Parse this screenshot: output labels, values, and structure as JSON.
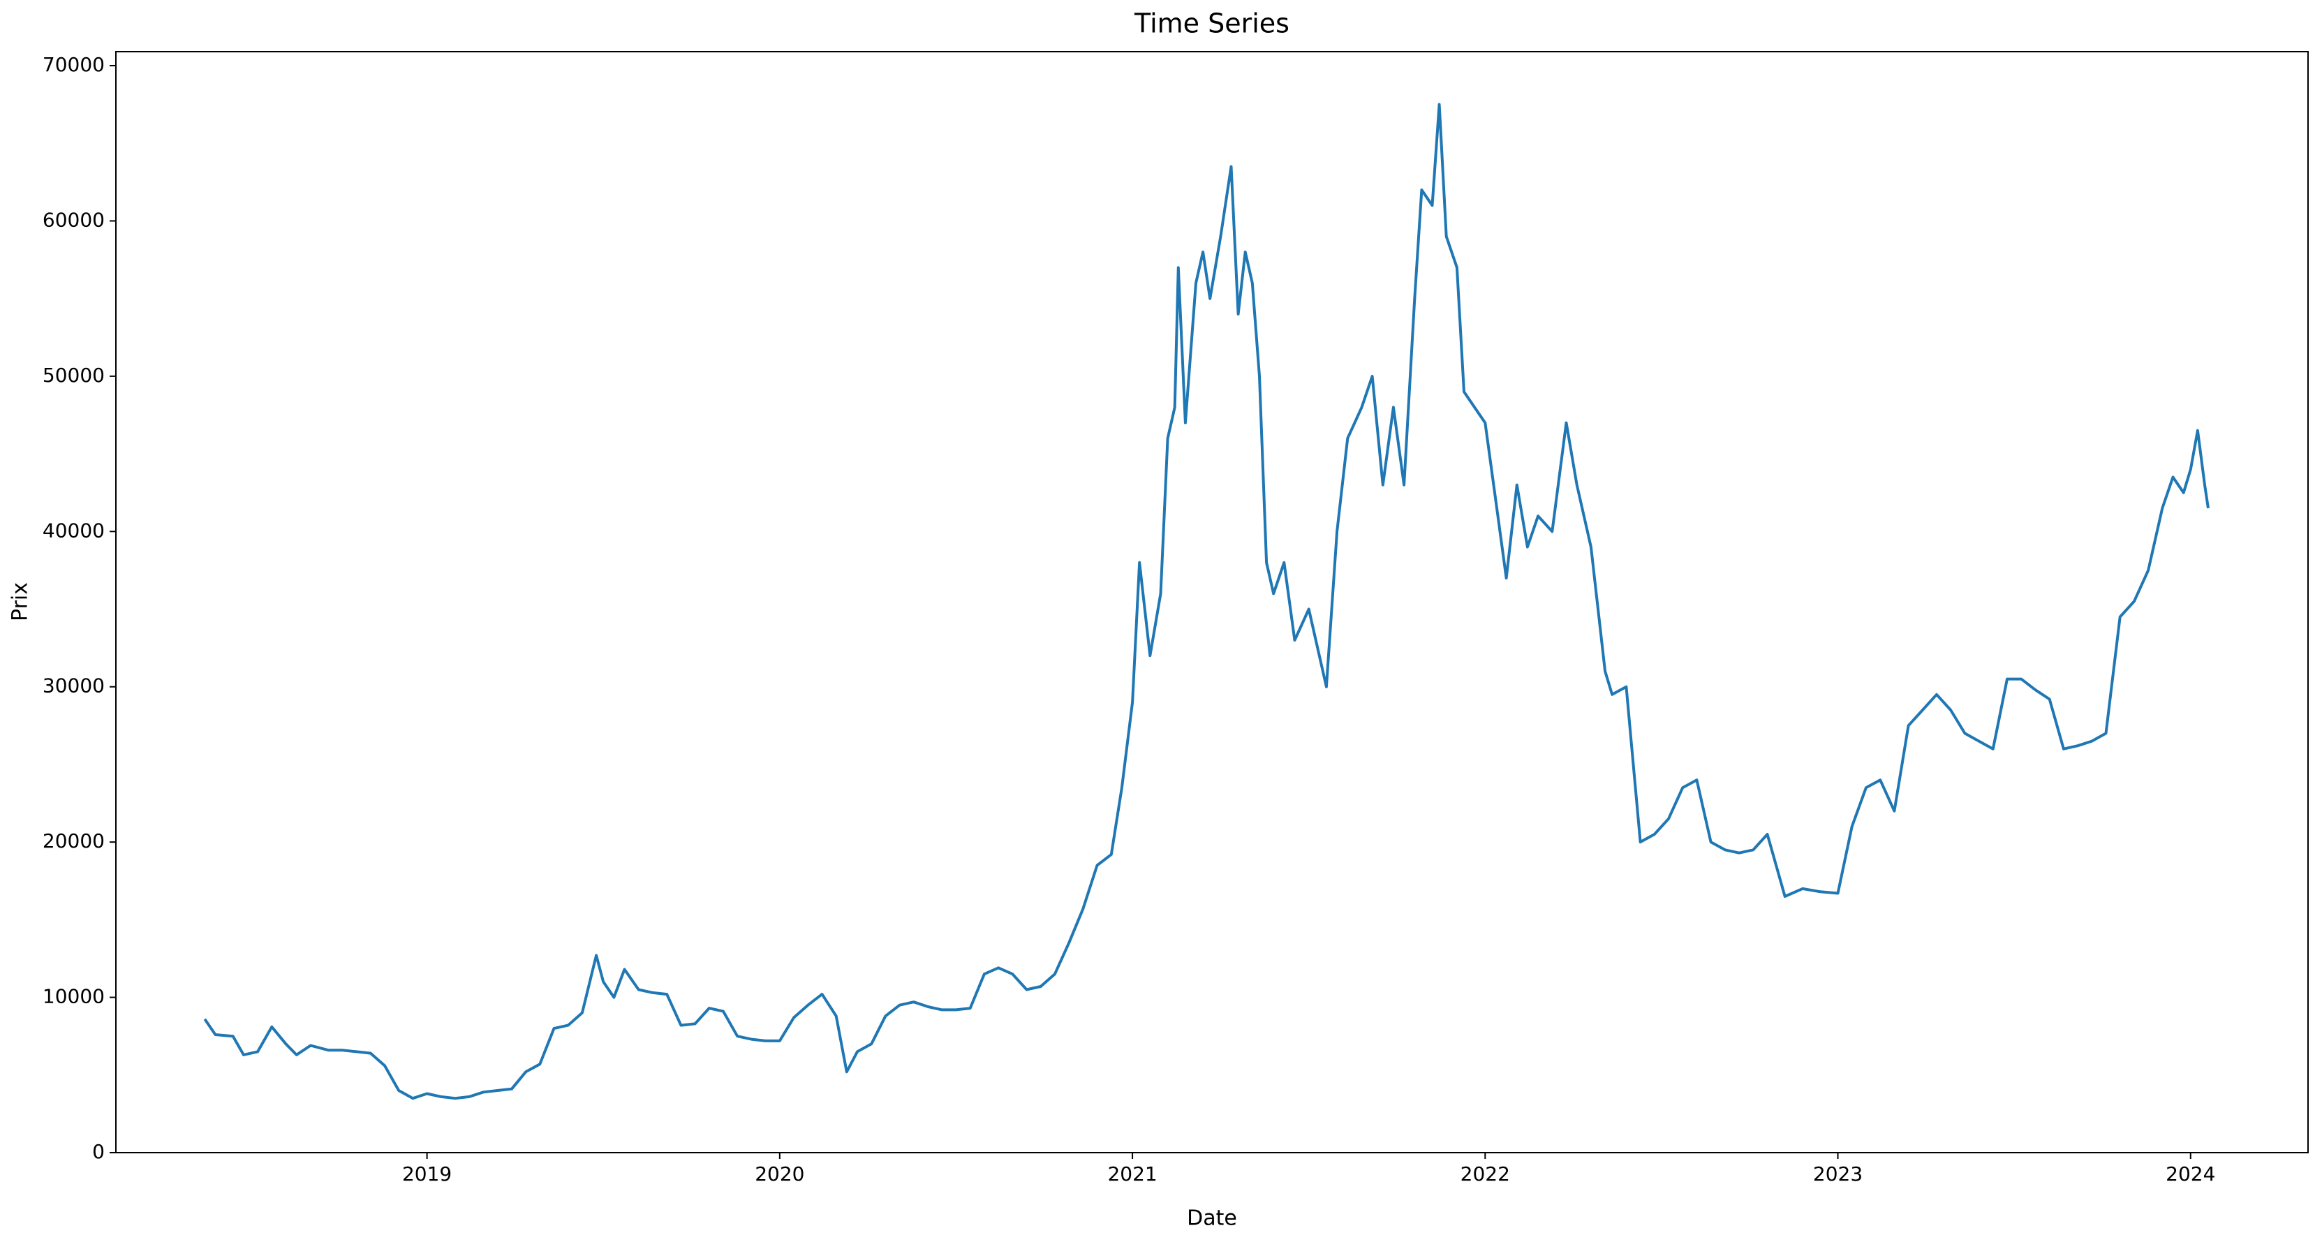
{
  "chart_data": {
    "type": "line",
    "title": "Time Series",
    "x_label": "Date",
    "y_label": "Prix",
    "x": [
      2018.37,
      2018.4,
      2018.45,
      2018.48,
      2018.52,
      2018.56,
      2018.6,
      2018.63,
      2018.67,
      2018.72,
      2018.76,
      2018.8,
      2018.84,
      2018.88,
      2018.92,
      2018.96,
      2019.0,
      2019.04,
      2019.08,
      2019.12,
      2019.16,
      2019.2,
      2019.24,
      2019.28,
      2019.32,
      2019.36,
      2019.4,
      2019.44,
      2019.48,
      2019.5,
      2019.53,
      2019.56,
      2019.6,
      2019.64,
      2019.68,
      2019.72,
      2019.76,
      2019.8,
      2019.84,
      2019.88,
      2019.92,
      2019.96,
      2020.0,
      2020.04,
      2020.08,
      2020.12,
      2020.16,
      2020.19,
      2020.22,
      2020.26,
      2020.3,
      2020.34,
      2020.38,
      2020.42,
      2020.46,
      2020.5,
      2020.54,
      2020.58,
      2020.62,
      2020.66,
      2020.7,
      2020.74,
      2020.78,
      2020.82,
      2020.86,
      2020.9,
      2020.94,
      2020.97,
      2021.0,
      2021.02,
      2021.05,
      2021.08,
      2021.1,
      2021.12,
      2021.13,
      2021.15,
      2021.18,
      2021.2,
      2021.22,
      2021.25,
      2021.28,
      2021.3,
      2021.32,
      2021.34,
      2021.36,
      2021.38,
      2021.4,
      2021.43,
      2021.46,
      2021.5,
      2021.53,
      2021.55,
      2021.58,
      2021.61,
      2021.65,
      2021.68,
      2021.71,
      2021.74,
      2021.77,
      2021.8,
      2021.82,
      2021.85,
      2021.87,
      2021.89,
      2021.92,
      2021.94,
      2021.97,
      2022.0,
      2022.03,
      2022.06,
      2022.09,
      2022.12,
      2022.15,
      2022.19,
      2022.23,
      2022.26,
      2022.3,
      2022.34,
      2022.36,
      2022.4,
      2022.44,
      2022.48,
      2022.52,
      2022.56,
      2022.6,
      2022.64,
      2022.68,
      2022.72,
      2022.76,
      2022.8,
      2022.85,
      2022.9,
      2022.95,
      2023.0,
      2023.04,
      2023.08,
      2023.12,
      2023.16,
      2023.2,
      2023.24,
      2023.28,
      2023.32,
      2023.36,
      2023.4,
      2023.44,
      2023.48,
      2023.52,
      2023.56,
      2023.6,
      2023.64,
      2023.68,
      2023.72,
      2023.76,
      2023.8,
      2023.84,
      2023.88,
      2023.92,
      2023.95,
      2023.98,
      2024.0,
      2024.02,
      2024.04,
      2024.05
    ],
    "series": [
      {
        "color": "#1f77b4",
        "values": [
          8600,
          7600,
          7500,
          6300,
          6500,
          8100,
          7000,
          6300,
          6900,
          6600,
          6600,
          6500,
          6400,
          5600,
          4000,
          3500,
          3800,
          3600,
          3500,
          3600,
          3900,
          4000,
          4100,
          5200,
          5700,
          8000,
          8200,
          9000,
          12700,
          11000,
          10000,
          11800,
          10500,
          10300,
          10200,
          8200,
          8300,
          9300,
          9100,
          7500,
          7300,
          7200,
          7200,
          8700,
          9500,
          10200,
          8800,
          5200,
          6500,
          7000,
          8800,
          9500,
          9700,
          9400,
          9200,
          9200,
          9300,
          11500,
          11900,
          11500,
          10500,
          10700,
          11500,
          13500,
          15700,
          18500,
          19200,
          23500,
          29000,
          38000,
          32000,
          36000,
          46000,
          48000,
          57000,
          47000,
          56000,
          58000,
          55000,
          59000,
          63500,
          54000,
          58000,
          56000,
          50000,
          38000,
          36000,
          38000,
          33000,
          35000,
          32000,
          30000,
          40000,
          46000,
          48000,
          50000,
          43000,
          48000,
          43000,
          55000,
          62000,
          61000,
          67500,
          59000,
          57000,
          49000,
          48000,
          47000,
          42000,
          37000,
          43000,
          39000,
          41000,
          40000,
          47000,
          43000,
          39000,
          31000,
          29500,
          30000,
          20000,
          20500,
          21500,
          23500,
          24000,
          20000,
          19500,
          19300,
          19500,
          20500,
          16500,
          17000,
          16800,
          16700,
          21000,
          23500,
          24000,
          22000,
          27500,
          28500,
          29500,
          28500,
          27000,
          26500,
          26000,
          30500,
          30500,
          29800,
          29200,
          26000,
          26200,
          26500,
          27000,
          34500,
          35500,
          37500,
          41500,
          43500,
          42500,
          44000,
          46500,
          43000,
          41500
        ]
      }
    ],
    "xlim": [
      2018.118,
      2024.333
    ],
    "xticks": [
      2019,
      2020,
      2021,
      2022,
      2023,
      2024
    ],
    "ylim": [
      0,
      70900
    ],
    "yticks": [
      0,
      10000,
      20000,
      30000,
      40000,
      50000,
      60000,
      70000
    ]
  }
}
